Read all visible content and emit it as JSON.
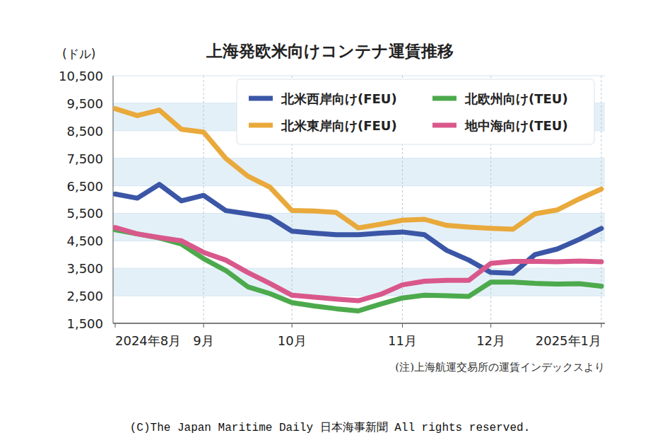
{
  "chart_data": {
    "type": "line",
    "title": "上海発欧米向けコンテナ運賃推移",
    "y_unit": "(ドル)",
    "note": "(注)上海航運交易所の運賃インデックスより",
    "copyright": "(C)The Japan Maritime Daily 日本海事新聞 All rights reserved.",
    "categories": [
      "2024年8月",
      null,
      null,
      null,
      "9月",
      null,
      null,
      null,
      "10月",
      null,
      null,
      null,
      null,
      "11月",
      null,
      null,
      null,
      "12月",
      null,
      null,
      null,
      null,
      "2025年1月"
    ],
    "series": [
      {
        "name": "北米西岸向け(FEU)",
        "color": "#3b56a6",
        "values": [
          6200,
          6050,
          6550,
          5950,
          6150,
          5600,
          5480,
          5350,
          4850,
          4780,
          4720,
          4720,
          4780,
          4820,
          4720,
          4150,
          3800,
          3350,
          3320,
          4000,
          4200,
          4550,
          4950
        ]
      },
      {
        "name": "北米東岸向け(FEU)",
        "color": "#e9a93b",
        "values": [
          9300,
          9050,
          9250,
          8550,
          8450,
          7500,
          6850,
          6450,
          5600,
          5580,
          5530,
          4970,
          5100,
          5250,
          5280,
          5060,
          5000,
          4950,
          4920,
          5480,
          5620,
          6020,
          6380
        ]
      },
      {
        "name": "北欧州向け(TEU)",
        "color": "#4caa4c",
        "values": [
          4900,
          4750,
          4600,
          4380,
          3850,
          3420,
          2830,
          2580,
          2250,
          2130,
          2030,
          1950,
          2200,
          2420,
          2520,
          2500,
          2480,
          3000,
          3000,
          2950,
          2930,
          2940,
          2850
        ]
      },
      {
        "name": "地中海向け(TEU)",
        "color": "#d9588b",
        "values": [
          4980,
          4750,
          4620,
          4500,
          4080,
          3800,
          3350,
          2950,
          2520,
          2450,
          2380,
          2320,
          2550,
          2900,
          3030,
          3060,
          3060,
          3680,
          3750,
          3750,
          3740,
          3760,
          3740
        ]
      }
    ],
    "ylim": [
      1500,
      10500
    ],
    "yticks": [
      {
        "value": 1500,
        "label": "1,500"
      },
      {
        "value": 2500,
        "label": "2,500"
      },
      {
        "value": 3500,
        "label": "3,500"
      },
      {
        "value": 4500,
        "label": "4,500"
      },
      {
        "value": 5500,
        "label": "5,500"
      },
      {
        "value": 6500,
        "label": "6,500"
      },
      {
        "value": 7500,
        "label": "7,500"
      },
      {
        "value": 8500,
        "label": "8,500"
      },
      {
        "value": 9500,
        "label": "9,500"
      },
      {
        "value": 10500,
        "label": "10,500"
      }
    ],
    "grid": true,
    "legend": "top-right"
  }
}
